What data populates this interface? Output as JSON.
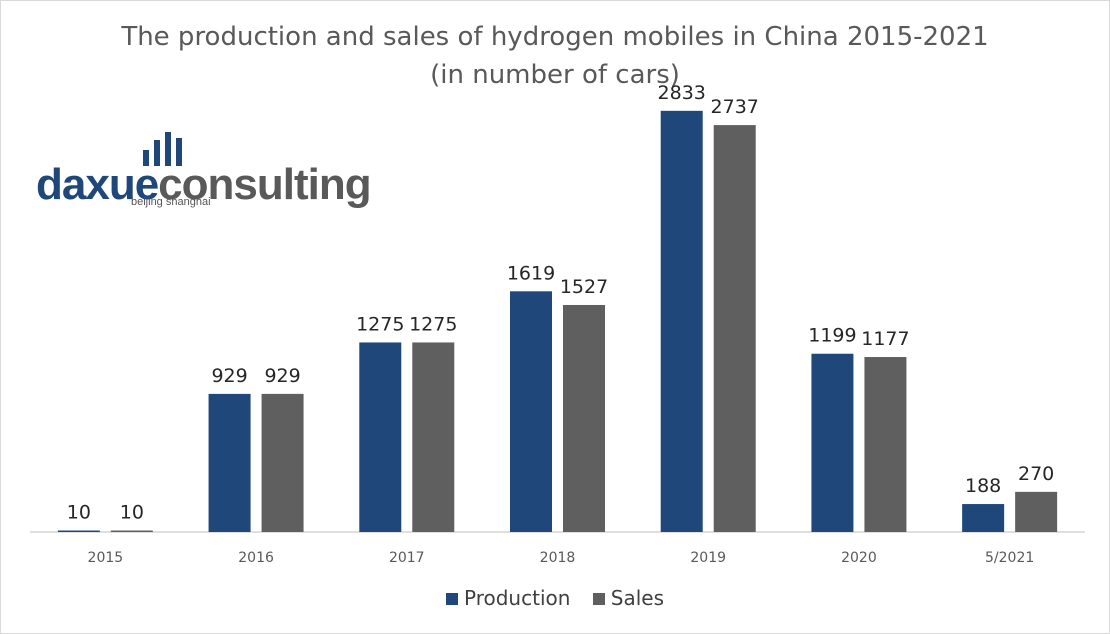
{
  "colors": {
    "production": "#1f477a",
    "sales": "#5f5f5f",
    "axis": "#bfbfbf",
    "logo_blue": "#1f477a",
    "logo_gray": "#595959"
  },
  "logo": {
    "part1": "daxue",
    "part2": "consulting",
    "tagline": "beijing shanghai"
  },
  "chart_data": {
    "type": "bar",
    "title": "The production and sales of hydrogen mobiles in China 2015-2021",
    "subtitle": "(in number of cars)",
    "categories": [
      "2015",
      "2016",
      "2017",
      "2018",
      "2019",
      "2020",
      "5/2021"
    ],
    "series": [
      {
        "name": "Production",
        "values": [
          10,
          929,
          1275,
          1619,
          2833,
          1199,
          188
        ]
      },
      {
        "name": "Sales",
        "values": [
          10,
          929,
          1275,
          1527,
          2737,
          1177,
          270
        ]
      }
    ],
    "ylim": [
      0,
      3000
    ],
    "grid": false,
    "legend_position": "bottom"
  }
}
